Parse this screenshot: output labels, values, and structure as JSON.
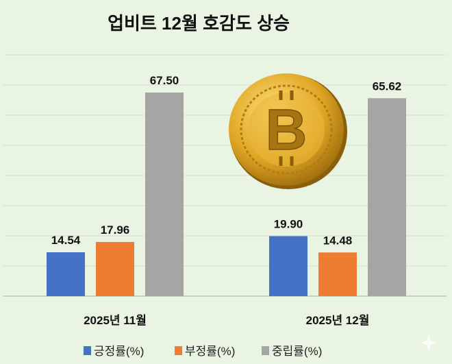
{
  "chart_data": {
    "type": "bar",
    "title": "업비트 12월 호감도 상승",
    "categories": [
      "2025년 11월",
      "2025년 12월"
    ],
    "series": [
      {
        "name": "긍정률(%)",
        "color": "#4472c4",
        "values": [
          14.54,
          19.9
        ],
        "labels": [
          "14.54",
          "19.90"
        ]
      },
      {
        "name": "부정률(%)",
        "color": "#ed7d31",
        "values": [
          17.96,
          14.48
        ],
        "labels": [
          "17.96",
          "14.48"
        ]
      },
      {
        "name": "중립률(%)",
        "color": "#a5a5a5",
        "values": [
          67.5,
          65.62
        ],
        "labels": [
          "67.50",
          "65.62"
        ]
      }
    ],
    "ylim": [
      0,
      80
    ],
    "grid": true,
    "legend": "bottom",
    "decoration_icon": "bitcoin-coin-icon"
  }
}
